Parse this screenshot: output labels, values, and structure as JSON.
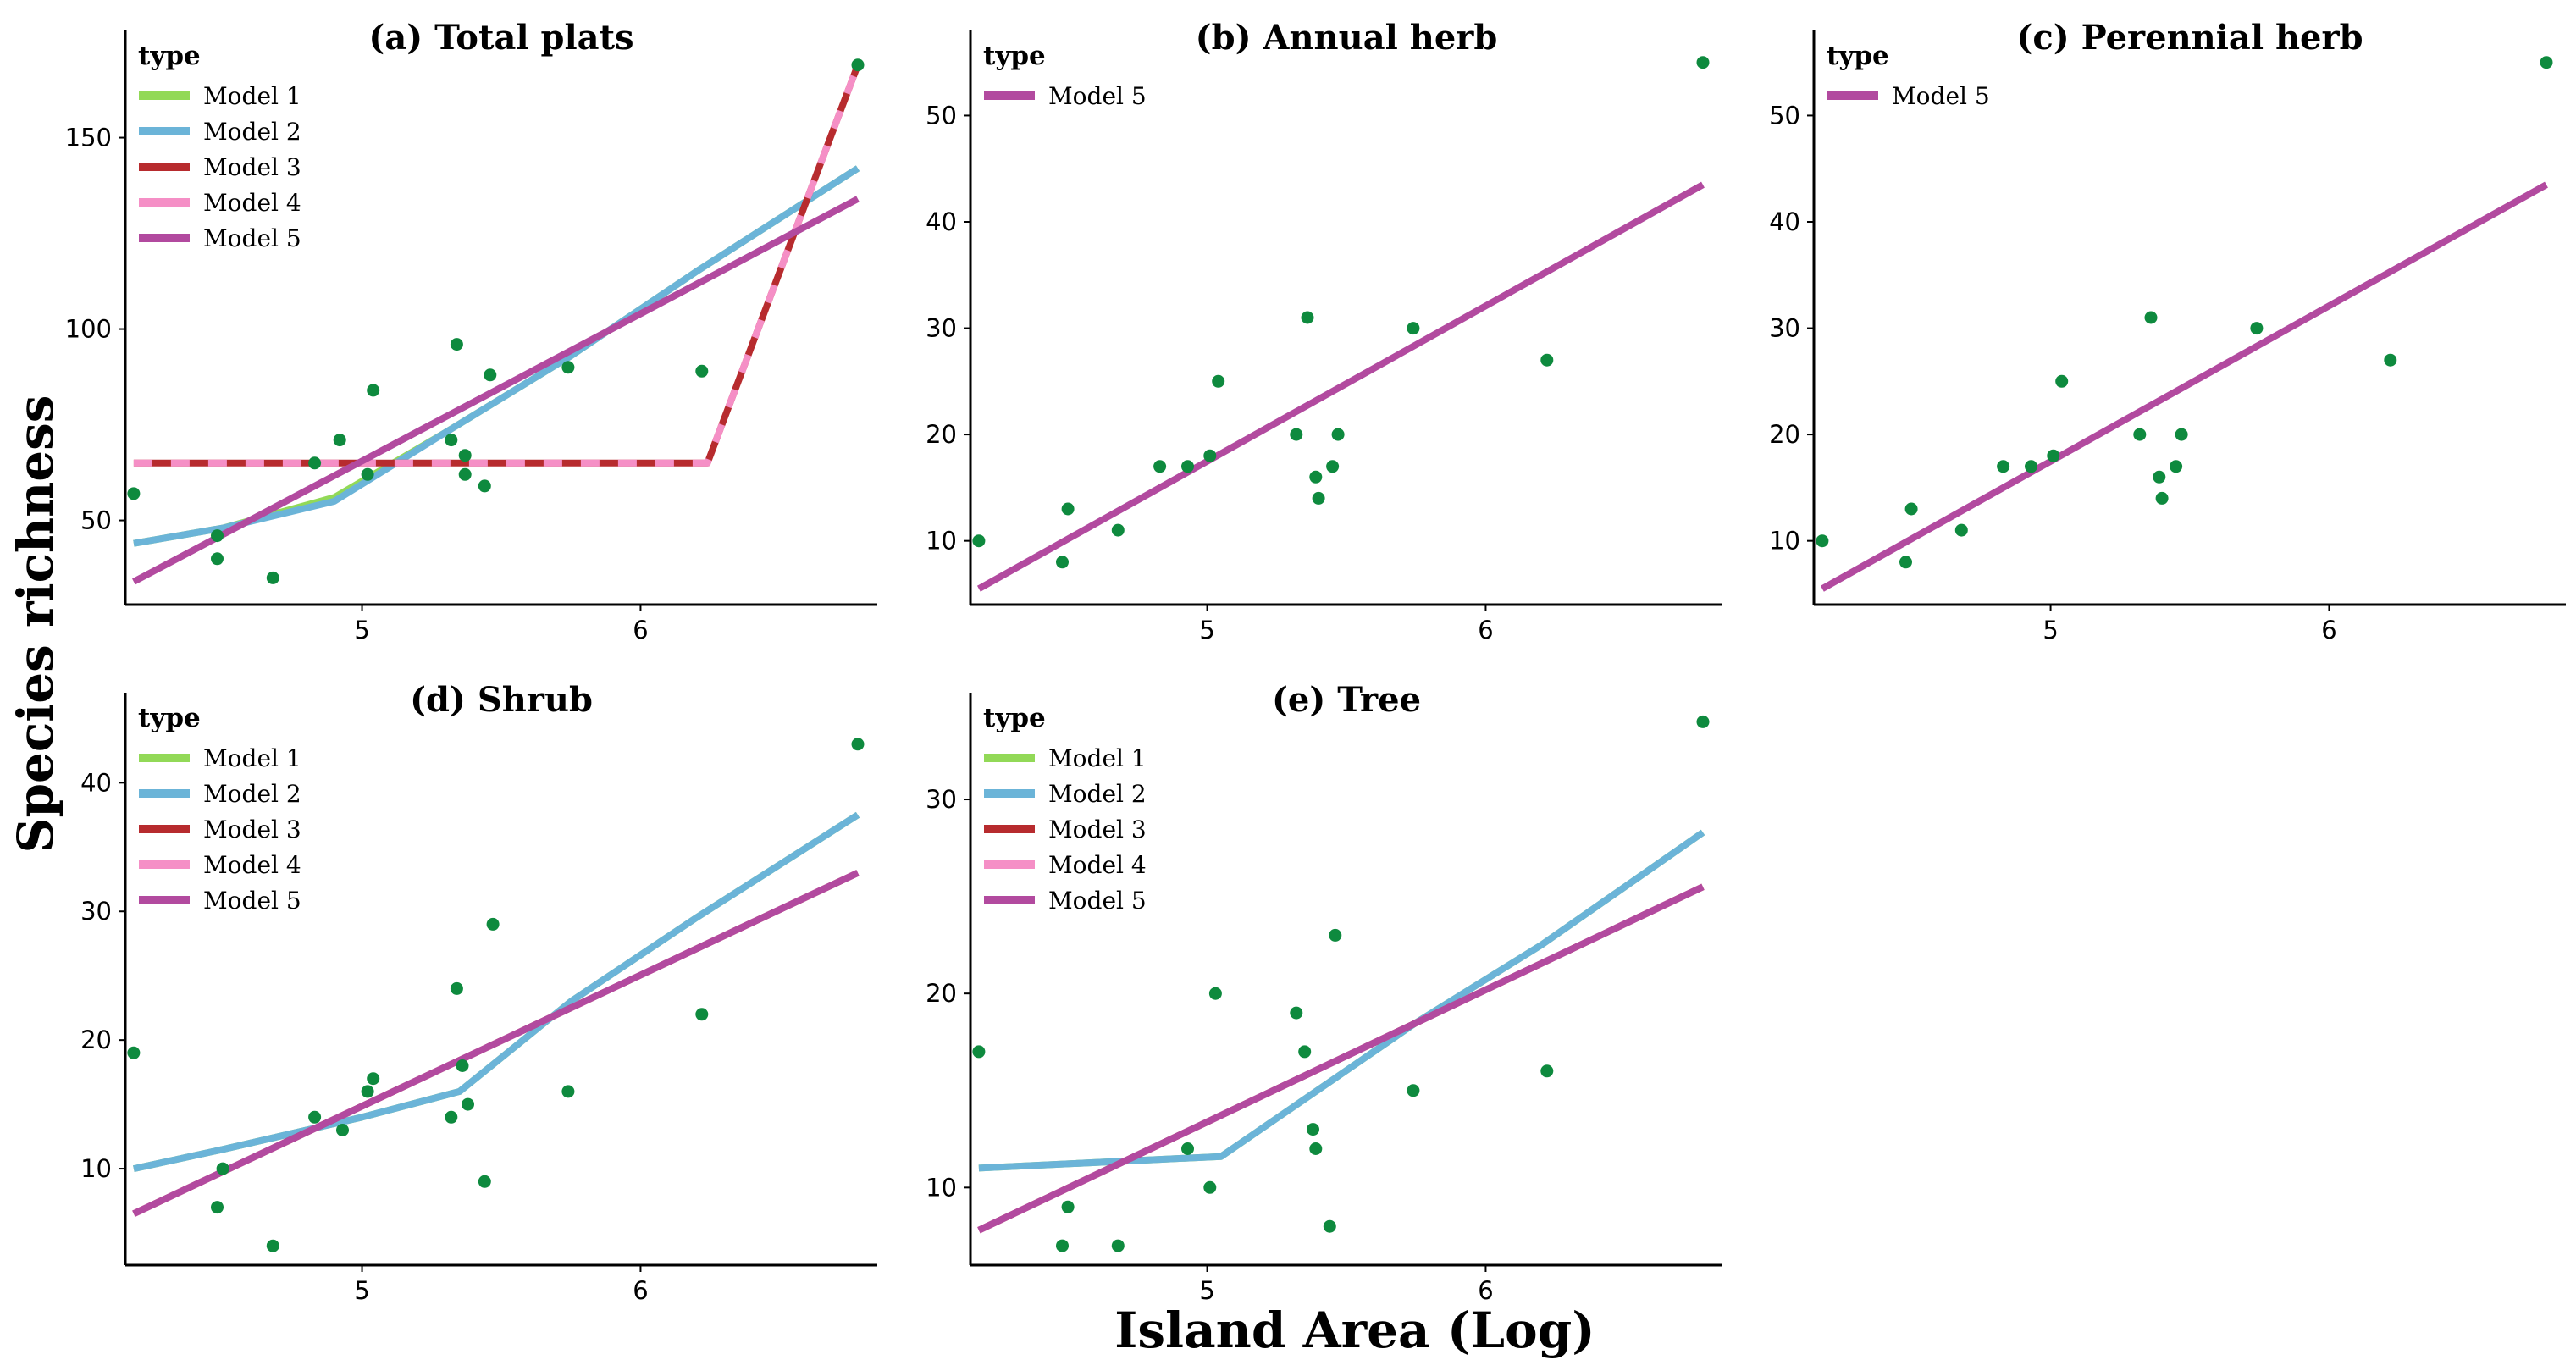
{
  "colors": {
    "model_1": "#92d957",
    "model_2": "#6bb4d8",
    "model_3": "#b72b2e",
    "model_4": "#f58fc6",
    "model_5": "#b24a9f",
    "points": "#0e8a3e",
    "axis": "#000000"
  },
  "figure": {
    "xlabel": "Island Area (Log)",
    "ylabel": "Species richness"
  },
  "chart_data": [
    {
      "type": "line",
      "title": "(a) Total plats",
      "legend_title": "type",
      "xlim": [
        4.15,
        6.85
      ],
      "ylim": [
        28,
        178
      ],
      "xticks": [
        5,
        6
      ],
      "yticks": [
        50,
        100,
        150
      ],
      "scatter": [
        [
          4.18,
          57
        ],
        [
          4.48,
          46
        ],
        [
          4.48,
          40
        ],
        [
          4.68,
          35
        ],
        [
          4.83,
          65
        ],
        [
          4.92,
          71
        ],
        [
          5.02,
          62
        ],
        [
          5.04,
          84
        ],
        [
          5.32,
          71
        ],
        [
          5.34,
          96
        ],
        [
          5.37,
          67
        ],
        [
          5.37,
          62
        ],
        [
          5.44,
          59
        ],
        [
          5.46,
          88
        ],
        [
          5.74,
          90
        ],
        [
          6.22,
          89
        ],
        [
          6.78,
          169
        ]
      ],
      "series": [
        {
          "name": "Model 1",
          "style": "solid",
          "x": [
            4.18,
            4.5,
            4.9,
            5.3,
            5.75,
            6.2,
            6.78
          ],
          "y": [
            44,
            48,
            56,
            73,
            93,
            115,
            142
          ]
        },
        {
          "name": "Model 2",
          "style": "solid",
          "x": [
            4.18,
            4.5,
            4.9,
            5.3,
            5.75,
            6.2,
            6.78
          ],
          "y": [
            44,
            48,
            55,
            73,
            93,
            115,
            142
          ]
        },
        {
          "name": "Model 3",
          "style": "solid",
          "x": [
            4.18,
            6.24,
            6.78
          ],
          "y": [
            65,
            65,
            169
          ]
        },
        {
          "name": "Model 4",
          "style": "dashed",
          "x": [
            4.18,
            6.24,
            6.78
          ],
          "y": [
            65,
            65,
            169
          ]
        },
        {
          "name": "Model 5",
          "style": "solid",
          "x": [
            4.18,
            6.78
          ],
          "y": [
            34,
            134
          ]
        }
      ]
    },
    {
      "type": "line",
      "title": "(b) Annual herb",
      "legend_title": "type",
      "xlim": [
        4.15,
        6.85
      ],
      "ylim": [
        4,
        58
      ],
      "xticks": [
        5,
        6
      ],
      "yticks": [
        10,
        20,
        30,
        40,
        50
      ],
      "scatter": [
        [
          4.18,
          10
        ],
        [
          4.48,
          8
        ],
        [
          4.5,
          13
        ],
        [
          4.68,
          11
        ],
        [
          4.83,
          17
        ],
        [
          4.93,
          17
        ],
        [
          5.01,
          18
        ],
        [
          5.04,
          25
        ],
        [
          5.32,
          20
        ],
        [
          5.36,
          31
        ],
        [
          5.39,
          16
        ],
        [
          5.4,
          14
        ],
        [
          5.45,
          17
        ],
        [
          5.47,
          20
        ],
        [
          5.74,
          30
        ],
        [
          6.22,
          27
        ],
        [
          6.78,
          55
        ]
      ],
      "series": [
        {
          "name": "Model 5",
          "style": "solid",
          "x": [
            4.18,
            6.78
          ],
          "y": [
            5.5,
            43.5
          ]
        }
      ]
    },
    {
      "type": "line",
      "title": "(c) Perennial herb",
      "legend_title": "type",
      "xlim": [
        4.15,
        6.85
      ],
      "ylim": [
        4,
        58
      ],
      "xticks": [
        5,
        6
      ],
      "yticks": [
        10,
        20,
        30,
        40,
        50
      ],
      "scatter": [
        [
          4.18,
          10
        ],
        [
          4.48,
          8
        ],
        [
          4.5,
          13
        ],
        [
          4.68,
          11
        ],
        [
          4.83,
          17
        ],
        [
          4.93,
          17
        ],
        [
          5.01,
          18
        ],
        [
          5.04,
          25
        ],
        [
          5.32,
          20
        ],
        [
          5.36,
          31
        ],
        [
          5.39,
          16
        ],
        [
          5.4,
          14
        ],
        [
          5.45,
          17
        ],
        [
          5.47,
          20
        ],
        [
          5.74,
          30
        ],
        [
          6.22,
          27
        ],
        [
          6.78,
          55
        ]
      ],
      "series": [
        {
          "name": "Model 5",
          "style": "solid",
          "x": [
            4.18,
            6.78
          ],
          "y": [
            5.5,
            43.5
          ]
        }
      ]
    },
    {
      "type": "line",
      "title": "(d) Shrub",
      "legend_title": "type",
      "xlim": [
        4.15,
        6.85
      ],
      "ylim": [
        2.5,
        47
      ],
      "xticks": [
        5,
        6
      ],
      "yticks": [
        10,
        20,
        30,
        40
      ],
      "scatter": [
        [
          4.18,
          19
        ],
        [
          4.48,
          7
        ],
        [
          4.5,
          10
        ],
        [
          4.68,
          4
        ],
        [
          4.83,
          14
        ],
        [
          4.93,
          13
        ],
        [
          5.02,
          16
        ],
        [
          5.04,
          17
        ],
        [
          5.32,
          14
        ],
        [
          5.34,
          24
        ],
        [
          5.36,
          18
        ],
        [
          5.38,
          15
        ],
        [
          5.44,
          9
        ],
        [
          5.47,
          29
        ],
        [
          5.74,
          16
        ],
        [
          6.22,
          22
        ],
        [
          6.78,
          43
        ]
      ],
      "series": [
        {
          "name": "Model 1",
          "style": "solid",
          "x": [
            4.18,
            4.5,
            5.0,
            5.35,
            5.75,
            6.2,
            6.78
          ],
          "y": [
            10,
            11.5,
            14,
            16,
            23,
            29.5,
            37.5
          ]
        },
        {
          "name": "Model 2",
          "style": "solid",
          "x": [
            4.18,
            4.5,
            5.0,
            5.35,
            5.75,
            6.2,
            6.78
          ],
          "y": [
            10,
            11.5,
            14,
            16,
            23,
            29.5,
            37.5
          ]
        },
        {
          "name": "Model 3",
          "style": "solid",
          "x": [
            4.18,
            6.78
          ],
          "y": [
            6.5,
            33
          ]
        },
        {
          "name": "Model 4",
          "style": "dashed",
          "x": [
            4.18,
            6.78
          ],
          "y": [
            6.5,
            33
          ]
        },
        {
          "name": "Model 5",
          "style": "solid",
          "x": [
            4.18,
            6.78
          ],
          "y": [
            6.5,
            33
          ]
        }
      ]
    },
    {
      "type": "line",
      "title": "(e) Tree",
      "legend_title": "type",
      "xlim": [
        4.15,
        6.85
      ],
      "ylim": [
        6,
        35.5
      ],
      "xticks": [
        5,
        6
      ],
      "yticks": [
        10,
        20,
        30
      ],
      "scatter": [
        [
          4.18,
          17
        ],
        [
          4.48,
          7
        ],
        [
          4.5,
          9
        ],
        [
          4.68,
          7
        ],
        [
          4.93,
          12
        ],
        [
          5.01,
          10
        ],
        [
          5.03,
          20
        ],
        [
          5.32,
          19
        ],
        [
          5.35,
          17
        ],
        [
          5.38,
          13
        ],
        [
          5.39,
          12
        ],
        [
          5.44,
          8
        ],
        [
          5.46,
          23
        ],
        [
          5.74,
          15
        ],
        [
          6.22,
          16
        ],
        [
          6.78,
          34
        ]
      ],
      "series": [
        {
          "name": "Model 1",
          "style": "solid",
          "x": [
            4.18,
            5.05,
            5.75,
            6.2,
            6.78
          ],
          "y": [
            11,
            11.6,
            18.5,
            22.5,
            28.3
          ]
        },
        {
          "name": "Model 2",
          "style": "solid",
          "x": [
            4.18,
            5.05,
            5.75,
            6.2,
            6.78
          ],
          "y": [
            11,
            11.6,
            18.5,
            22.5,
            28.3
          ]
        },
        {
          "name": "Model 3",
          "style": "solid",
          "x": [
            4.18,
            6.78
          ],
          "y": [
            7.8,
            25.5
          ]
        },
        {
          "name": "Model 4",
          "style": "dashed",
          "x": [
            4.18,
            6.78
          ],
          "y": [
            7.8,
            25.5
          ]
        },
        {
          "name": "Model 5",
          "style": "solid",
          "x": [
            4.18,
            6.78
          ],
          "y": [
            7.8,
            25.5
          ]
        }
      ]
    }
  ]
}
